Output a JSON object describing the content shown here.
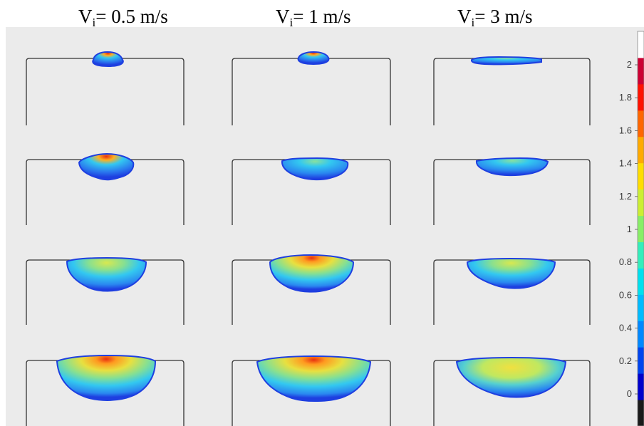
{
  "columns": [
    {
      "prefix": "V",
      "sub": "i",
      "value": "= 0.5 m/s"
    },
    {
      "prefix": "V",
      "sub": "i",
      "value": "= 1 m/s"
    },
    {
      "prefix": "V",
      "sub": "i",
      "value": "= 3 m/s"
    }
  ],
  "colorbar": {
    "ticks": [
      "2",
      "1.8",
      "1.6",
      "1.4",
      "1.2",
      "1",
      "0.8",
      "0.6",
      "0.4",
      "0.2",
      "0"
    ],
    "colors": [
      "#1a1a1a",
      "#0000cc",
      "#0044ee",
      "#0088ff",
      "#00bbff",
      "#00e0ee",
      "#33eebb",
      "#88ee66",
      "#ccee33",
      "#ffdd00",
      "#ffaa00",
      "#ff6600",
      "#ff1100",
      "#cc0033",
      "#ffffff"
    ]
  },
  "rows": 4,
  "palette": {
    "outline": "#333333",
    "background": "#ebebeb",
    "edge_blue": "#1e3fe0",
    "mid_blue": "#2a88f0",
    "cyan": "#33c8f0",
    "green": "#88e090",
    "yellow": "#e8e040",
    "orange": "#ff9a20",
    "red": "#e83010"
  }
}
